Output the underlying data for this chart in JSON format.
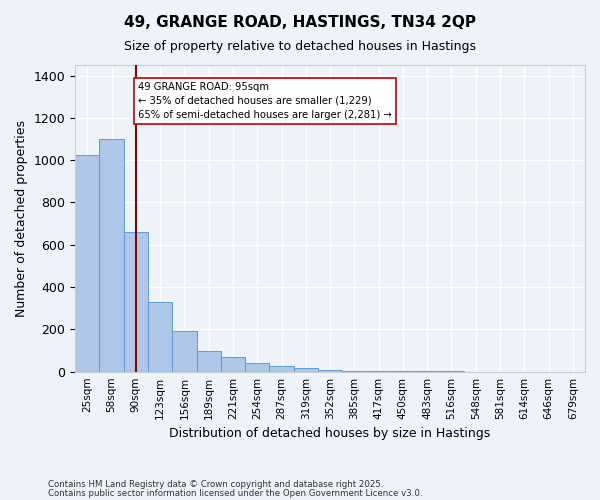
{
  "title1": "49, GRANGE ROAD, HASTINGS, TN34 2QP",
  "title2": "Size of property relative to detached houses in Hastings",
  "xlabel": "Distribution of detached houses by size in Hastings",
  "ylabel": "Number of detached properties",
  "footnote1": "Contains HM Land Registry data © Crown copyright and database right 2025.",
  "footnote2": "Contains public sector information licensed under the Open Government Licence v3.0.",
  "bin_labels": [
    "25sqm",
    "58sqm",
    "90sqm",
    "123sqm",
    "156sqm",
    "189sqm",
    "221sqm",
    "254sqm",
    "287sqm",
    "319sqm",
    "352sqm",
    "385sqm",
    "417sqm",
    "450sqm",
    "483sqm",
    "516sqm",
    "548sqm",
    "581sqm",
    "614sqm",
    "646sqm",
    "679sqm"
  ],
  "bar_values": [
    1025,
    1100,
    660,
    330,
    190,
    100,
    70,
    40,
    25,
    18,
    10,
    5,
    3,
    2,
    1,
    1,
    0,
    0,
    0,
    0,
    0
  ],
  "bar_color": "#aec6e8",
  "bar_edge_color": "#5b9bd5",
  "background_color": "#eef3fa",
  "grid_color": "#ffffff",
  "vline_x": 2.0,
  "vline_color": "#8b0000",
  "annotation_text": "49 GRANGE ROAD: 95sqm\n← 35% of detached houses are smaller (1,229)\n65% of semi-detached houses are larger (2,281) →",
  "annotation_box_color": "#ffffff",
  "annotation_box_edge": "#c00000",
  "ylim": [
    0,
    1450
  ],
  "yticks": [
    0,
    200,
    400,
    600,
    800,
    1000,
    1200,
    1400
  ]
}
